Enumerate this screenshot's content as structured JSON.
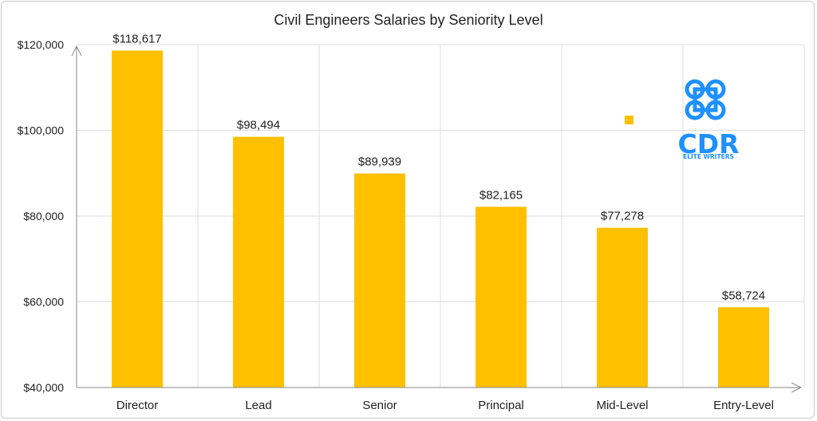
{
  "chart_data": {
    "type": "bar",
    "title": "Civil Engineers Salaries by Seniority Level",
    "xlabel": "",
    "ylabel": "",
    "categories": [
      "Director",
      "Lead",
      "Senior",
      "Principal",
      "Mid-Level",
      "Entry-Level"
    ],
    "values": [
      118617,
      98494,
      89939,
      82165,
      77278,
      58724
    ],
    "data_labels": [
      "$118,617",
      "$98,494",
      "$89,939",
      "$82,165",
      "$77,278",
      "$58,724"
    ],
    "yticks": [
      40000,
      60000,
      80000,
      100000,
      120000
    ],
    "ytick_labels": [
      "$40,000",
      "$60,000",
      "$80,000",
      "$100,000",
      "$120,000"
    ],
    "ylim": [
      40000,
      120000
    ],
    "grid": true,
    "legend": "none",
    "bar_color": "#FFC000"
  },
  "logo": {
    "text": "CDR",
    "subtext": "ELITE WRITERS",
    "icon": "command-key-icon",
    "color": "#1E90FF"
  }
}
